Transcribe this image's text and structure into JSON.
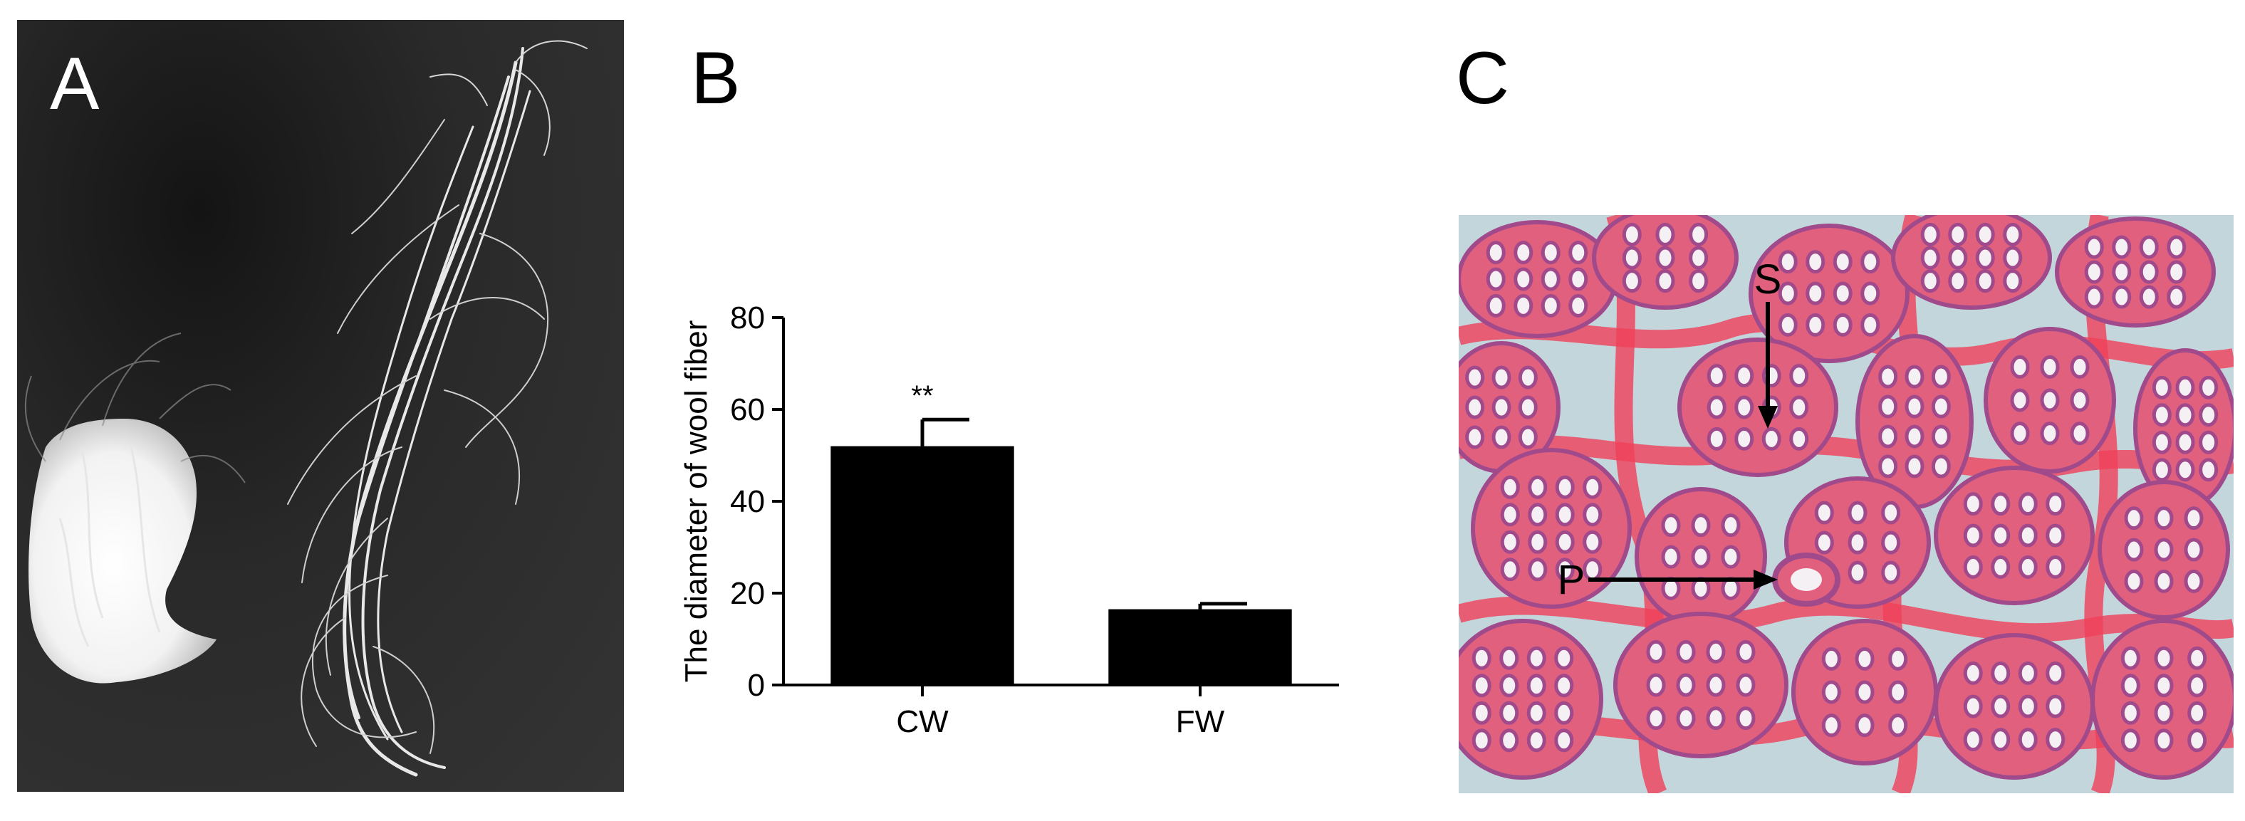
{
  "panels": {
    "a": {
      "letter": "A"
    },
    "b": {
      "letter": "B"
    },
    "c": {
      "letter": "C",
      "markers": [
        {
          "label": "S"
        },
        {
          "label": "P"
        }
      ]
    }
  },
  "colors": {
    "bar": "#000000",
    "photo_background": "#2e2e2e",
    "tissue_pink": "#e0607e",
    "tissue_stroma": "#f0405a",
    "gap_blue": "#c2d6dc",
    "follicle_purple": "#a04a8c"
  },
  "chart_data": {
    "type": "bar",
    "categories": [
      "CW",
      "FW"
    ],
    "values": [
      52,
      16.5
    ],
    "errors": [
      5.8,
      1.2
    ],
    "annotations": [
      "**",
      ""
    ],
    "ylabel": "The diameter of wool fiber",
    "ylim": [
      0,
      80
    ],
    "yticks": [
      0,
      20,
      40,
      60,
      80
    ],
    "grid": false
  }
}
